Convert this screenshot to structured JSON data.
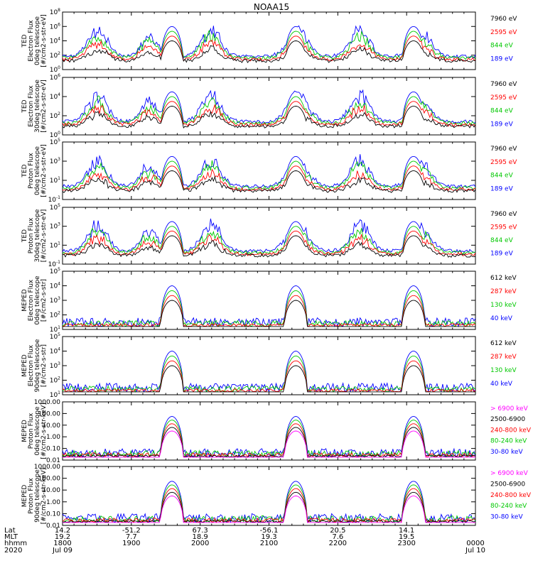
{
  "chart_data": {
    "type": "line",
    "title": "NOAA15",
    "x_ticks": [
      "1800",
      "1900",
      "2000",
      "2100",
      "2200",
      "2300"
    ],
    "x_range_hhmm": [
      "1800",
      "0000"
    ],
    "footer": {
      "row_labels": [
        "Lat",
        "MLT",
        "hhmm",
        "2020"
      ],
      "lat": [
        "14.2",
        "-51.2",
        "67.3",
        "-56.1",
        "20.5",
        "14.1"
      ],
      "mlt": [
        "19.2",
        "7.7",
        "18.9",
        "19.3",
        "7.6",
        "19.5"
      ],
      "hhmm": [
        "1800",
        "1900",
        "2000",
        "2100",
        "2200",
        "2300",
        "0000"
      ],
      "date_start": "Jul 09",
      "date_end": "Jul 10"
    },
    "panels": [
      {
        "ylabel": [
          "TED",
          "Electron Flux",
          "0deg telescope",
          "[#/cm2-s-str-eV]"
        ],
        "yticks": [
          "10^0",
          "10^2",
          "10^4",
          "10^6",
          "10^8"
        ],
        "log_range": [
          0,
          8
        ],
        "series": [
          {
            "name": "7960 eV",
            "color": "#000000"
          },
          {
            "name": "2595 eV",
            "color": "#ff0000"
          },
          {
            "name": "844 eV",
            "color": "#00c800"
          },
          {
            "name": "189 eV",
            "color": "#0000ff"
          }
        ]
      },
      {
        "ylabel": [
          "TED",
          "Electron Flux",
          "30deg telescope",
          "[#/cm2-s-str-eV]"
        ],
        "yticks": [
          "10^0",
          "10^2",
          "10^4",
          "10^6"
        ],
        "log_range": [
          0,
          6
        ],
        "series": [
          {
            "name": "7960 eV",
            "color": "#000000"
          },
          {
            "name": "2595 eV",
            "color": "#ff0000"
          },
          {
            "name": "844 eV",
            "color": "#00c800"
          },
          {
            "name": "189 eV",
            "color": "#0000ff"
          }
        ]
      },
      {
        "ylabel": [
          "TED",
          "Proton Flux",
          "0deg telescope",
          "[#/cm2-s-str-eV]"
        ],
        "yticks": [
          "10^-1",
          "10^1",
          "10^3",
          "10^5"
        ],
        "log_range": [
          -1,
          5
        ],
        "series": [
          {
            "name": "7960 eV",
            "color": "#000000"
          },
          {
            "name": "2595 eV",
            "color": "#ff0000"
          },
          {
            "name": "844 eV",
            "color": "#00c800"
          },
          {
            "name": "189 eV",
            "color": "#0000ff"
          }
        ]
      },
      {
        "ylabel": [
          "TED",
          "Proton Flux",
          "30deg telescope",
          "[#/cm2-s-str-eV]"
        ],
        "yticks": [
          "10^-1",
          "10^1",
          "10^3",
          "10^5"
        ],
        "log_range": [
          -1,
          5
        ],
        "series": [
          {
            "name": "7960 eV",
            "color": "#000000"
          },
          {
            "name": "2595 eV",
            "color": "#ff0000"
          },
          {
            "name": "844 eV",
            "color": "#00c800"
          },
          {
            "name": "189 eV",
            "color": "#0000ff"
          }
        ]
      },
      {
        "ylabel": [
          "MEPED",
          "Electron Flux",
          "0deg telescope",
          "[#/cm2-s-str]"
        ],
        "yticks": [
          "10^1",
          "10^2",
          "10^3",
          "10^4",
          "10^5"
        ],
        "log_range": [
          1,
          5
        ],
        "series": [
          {
            "name": "612 keV",
            "color": "#000000"
          },
          {
            "name": "287 keV",
            "color": "#ff0000"
          },
          {
            "name": "130 keV",
            "color": "#00c800"
          },
          {
            "name": "40 keV",
            "color": "#0000ff"
          }
        ]
      },
      {
        "ylabel": [
          "MEPED",
          "Electron Flux",
          "90deg telescope",
          "[#/cm2-s-str]"
        ],
        "yticks": [
          "10^1",
          "10^2",
          "10^3",
          "10^4",
          "10^5"
        ],
        "log_range": [
          1,
          5
        ],
        "series": [
          {
            "name": "612 keV",
            "color": "#000000"
          },
          {
            "name": "287 keV",
            "color": "#ff0000"
          },
          {
            "name": "130 keV",
            "color": "#00c800"
          },
          {
            "name": "40 keV",
            "color": "#0000ff"
          }
        ]
      },
      {
        "ylabel": [
          "MEPED",
          "Proton Flux",
          "0deg telescope",
          "[#/cm2-s-str-keV]"
        ],
        "yticks": [
          "0.01",
          "0.10",
          "1.00",
          "10.00",
          "100.00",
          "1000.00"
        ],
        "log_range": [
          -2,
          3
        ],
        "series": [
          {
            "name": "> 6900 keV",
            "color": "#ff00ff"
          },
          {
            "name": "2500-6900",
            "color": "#000000"
          },
          {
            "name": "240-800 keV",
            "color": "#ff0000"
          },
          {
            "name": "80-240 keV",
            "color": "#00c800"
          },
          {
            "name": "30-80 keV",
            "color": "#0000ff"
          }
        ]
      },
      {
        "ylabel": [
          "MEPED",
          "Proton Flux",
          "90deg telescope",
          "[#/cm2-s-str-keV]"
        ],
        "yticks": [
          "0.01",
          "0.10",
          "1.00",
          "10.00",
          "100.00",
          "1000.00"
        ],
        "log_range": [
          -2,
          3
        ],
        "series": [
          {
            "name": "> 6900 keV",
            "color": "#ff00ff"
          },
          {
            "name": "2500-6900",
            "color": "#000000"
          },
          {
            "name": "240-800 keV",
            "color": "#ff0000"
          },
          {
            "name": "80-240 keV",
            "color": "#00c800"
          },
          {
            "name": "30-80 keV",
            "color": "#0000ff"
          }
        ]
      }
    ]
  }
}
